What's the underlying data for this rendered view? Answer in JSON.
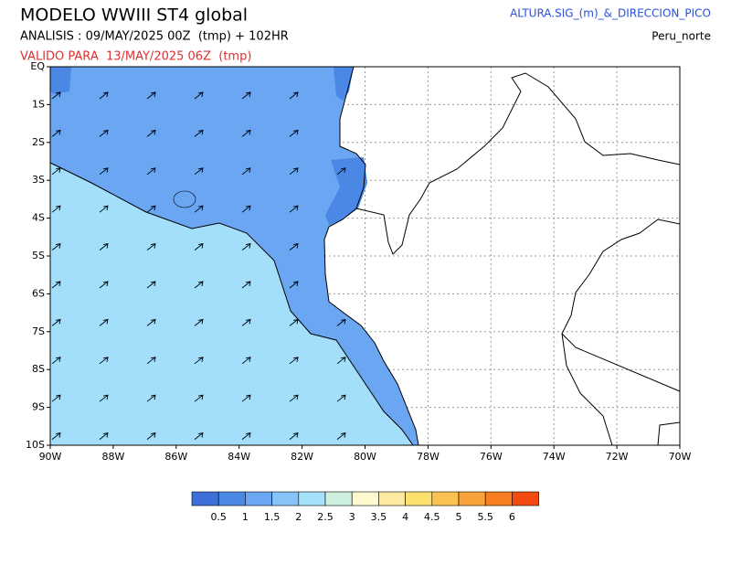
{
  "header": {
    "title": "MODELO WWIII ST4 global",
    "analysis": "ANALISIS : 09/MAY/2025 00Z  (tmp) + 102HR",
    "valid": "VALIDO PARA  13/MAY/2025 06Z  (tmp)",
    "variable": "ALTURA.SIG_(m)_&_DIRECCION_PICO",
    "region": "Peru_norte"
  },
  "map": {
    "xlim": [
      -90,
      -70
    ],
    "ylim": [
      -10,
      0
    ],
    "xticks": [
      {
        "value": -90,
        "label": "90W"
      },
      {
        "value": -88,
        "label": "88W"
      },
      {
        "value": -86,
        "label": "86W"
      },
      {
        "value": -84,
        "label": "84W"
      },
      {
        "value": -82,
        "label": "82W"
      },
      {
        "value": -80,
        "label": "80W"
      },
      {
        "value": -78,
        "label": "78W"
      },
      {
        "value": -76,
        "label": "76W"
      },
      {
        "value": -74,
        "label": "74W"
      },
      {
        "value": -72,
        "label": "72W"
      },
      {
        "value": -70,
        "label": "70W"
      }
    ],
    "yticks": [
      {
        "value": 0,
        "label": "EQ"
      },
      {
        "value": -1,
        "label": "1S"
      },
      {
        "value": -2,
        "label": "2S"
      },
      {
        "value": -3,
        "label": "3S"
      },
      {
        "value": -4,
        "label": "4S"
      },
      {
        "value": -5,
        "label": "5S"
      },
      {
        "value": -6,
        "label": "6S"
      },
      {
        "value": -7,
        "label": "7S"
      },
      {
        "value": -8,
        "label": "8S"
      },
      {
        "value": -9,
        "label": "9S"
      },
      {
        "value": -10,
        "label": "10S"
      }
    ]
  },
  "colorbar": {
    "levels": [
      0.5,
      1,
      1.5,
      2,
      2.5,
      3,
      3.5,
      4,
      4.5,
      5,
      5.5,
      6
    ],
    "colors": [
      "#3c70d8",
      "#4b88e6",
      "#6aa6f2",
      "#85c3f8",
      "#a6e1fb",
      "#cdf0e0",
      "#fff9cf",
      "#fdeaa0",
      "#fde06e",
      "#fbc252",
      "#f9a23a",
      "#f77e20",
      "#f24a10"
    ]
  }
}
